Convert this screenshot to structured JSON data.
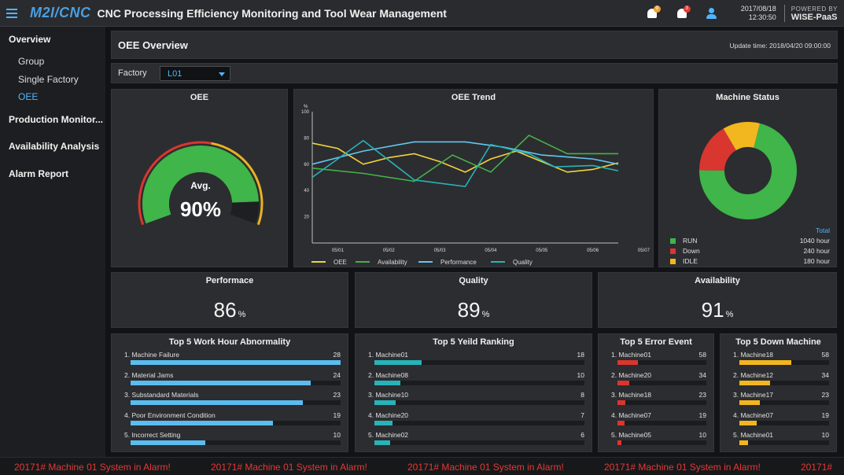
{
  "header": {
    "logo": "M2I/CNC",
    "title": "CNC Processing Efficiency Monitoring and Tool Wear Management",
    "alerts": [
      {
        "icon": "bell-icon",
        "count": "9",
        "color": "#f0a030"
      },
      {
        "icon": "bell-icon",
        "count": "3",
        "color": "#e53935"
      }
    ],
    "date": "2017/08/18",
    "time": "12:30:50",
    "powered_by": "POWERED BY",
    "brand": "WISE-PaaS"
  },
  "sidebar": {
    "sections": [
      {
        "label": "Overview",
        "children": [
          "Group",
          "Single Factory",
          "OEE"
        ],
        "active_child": "OEE"
      },
      {
        "label": "Production Monitor..."
      },
      {
        "label": "Availability Analysis"
      },
      {
        "label": "Alarm Report"
      }
    ]
  },
  "page": {
    "title": "OEE Overview",
    "update_time": "Update time: 2018/04/20 09:00:00"
  },
  "filter": {
    "label": "Factory",
    "selected": "L01"
  },
  "oee_gauge": {
    "title": "OEE",
    "label": "Avg.",
    "value": "90%",
    "fraction": 0.9,
    "colors": {
      "fill": "#3fb54a",
      "remainder": "#1e1f21",
      "outer_red": "#d9362f",
      "outer_yellow": "#e8b321"
    }
  },
  "chart_data": {
    "type": "line",
    "title": "OEE Trend",
    "ylabel": "%",
    "ylim": [
      0,
      100
    ],
    "yticks": [
      20,
      40,
      60,
      80,
      100
    ],
    "categories": [
      "05/01",
      "05/02",
      "05/03",
      "05/04",
      "05/05",
      "05/06",
      "05/07"
    ],
    "x": [
      1,
      2,
      3,
      4,
      5,
      6,
      7,
      8,
      9,
      10,
      11,
      12,
      13,
      14,
      15,
      16,
      17,
      18,
      19,
      20,
      21,
      22,
      23,
      24,
      25
    ],
    "series": [
      {
        "name": "OEE",
        "color": "#f2d33a",
        "x": [
          1,
          3,
          5,
          7,
          9,
          11,
          13,
          15,
          17,
          19,
          21,
          23,
          25
        ],
        "values": [
          76,
          72,
          60,
          65,
          68,
          62,
          54,
          64,
          70,
          62,
          54,
          56,
          61
        ]
      },
      {
        "name": "Availability",
        "color": "#45b249",
        "x": [
          1,
          5,
          9,
          12,
          15,
          18,
          21,
          25
        ],
        "values": [
          57,
          53,
          47,
          67,
          54,
          82,
          68,
          68
        ]
      },
      {
        "name": "Performance",
        "color": "#63c7f0",
        "x": [
          1,
          5,
          9,
          13,
          16,
          19,
          23,
          25
        ],
        "values": [
          60,
          70,
          77,
          77,
          73,
          67,
          64,
          60
        ]
      },
      {
        "name": "Quality",
        "color": "#27b3b8",
        "x": [
          1,
          5,
          9,
          13,
          15,
          18,
          20,
          23,
          25
        ],
        "values": [
          50,
          78,
          48,
          43,
          75,
          68,
          58,
          59,
          55
        ]
      }
    ]
  },
  "machine_status": {
    "title": "Machine Status",
    "total_label": "Total",
    "items": [
      {
        "name": "RUN",
        "hours": "1040 hour",
        "value": 1040,
        "color": "#3fb54a"
      },
      {
        "name": "Down",
        "hours": "240 hour",
        "value": 240,
        "color": "#d9362f"
      },
      {
        "name": "IDLE",
        "hours": "180 hour",
        "value": 180,
        "color": "#f2b61f"
      }
    ]
  },
  "kpis": [
    {
      "title": "Performace",
      "value": "86",
      "unit": "%"
    },
    {
      "title": "Quality",
      "value": "89",
      "unit": "%"
    },
    {
      "title": "Availability",
      "value": "91",
      "unit": "%"
    }
  ],
  "rankings": [
    {
      "title": "Top 5 Work Hour Abnormality",
      "color": "#5bbcef",
      "max": 28,
      "rows": [
        {
          "name": "1. Machine Failure",
          "value": "28",
          "v": 28
        },
        {
          "name": "2. Material Jams",
          "value": "24",
          "v": 24
        },
        {
          "name": "3. Substandard Materials",
          "value": "23",
          "v": 23
        },
        {
          "name": "4. Poor Environment Condition",
          "value": "19",
          "v": 19
        },
        {
          "name": "5. Incorrect Setting",
          "value": "10",
          "v": 10
        }
      ]
    },
    {
      "title": "Top 5 Yeild Ranking",
      "color": "#27b3b8",
      "max": 80,
      "rows": [
        {
          "name": "1. Machine01",
          "value": "18",
          "v": 18
        },
        {
          "name": "2. Machine08",
          "value": "10",
          "v": 10
        },
        {
          "name": "3. Machine10",
          "value": "8",
          "v": 8
        },
        {
          "name": "4. Machine20",
          "value": "7",
          "v": 7
        },
        {
          "name": "5. Machine02",
          "value": "6",
          "v": 6
        }
      ]
    },
    {
      "title": "Top 5 Error Event",
      "color": "#d9362f",
      "max": 250,
      "rows": [
        {
          "name": "1. Machine01",
          "value": "58",
          "v": 58
        },
        {
          "name": "2. Machine20",
          "value": "34",
          "v": 34
        },
        {
          "name": "3. Machine18",
          "value": "23",
          "v": 23
        },
        {
          "name": "4. Machine07",
          "value": "19",
          "v": 19
        },
        {
          "name": "5. Machine05",
          "value": "10",
          "v": 10
        }
      ]
    },
    {
      "title": "Top 5 Down Machine",
      "color": "#f2b61f",
      "max": 100,
      "rows": [
        {
          "name": "1. Machine18",
          "value": "58",
          "v": 58
        },
        {
          "name": "2. Machine12",
          "value": "34",
          "v": 34
        },
        {
          "name": "3. Machine17",
          "value": "23",
          "v": 23
        },
        {
          "name": "4. Machine07",
          "value": "19",
          "v": 19
        },
        {
          "name": "5. Machine01",
          "value": "10",
          "v": 10
        }
      ]
    }
  ],
  "ticker": {
    "messages": [
      "20171# Machine 01 System in Alarm!",
      "20171# Machine 01 System in Alarm!",
      "20171# Machine 01 System in Alarm!",
      "20171# Machine 01 System in Alarm!",
      "20171#"
    ]
  }
}
